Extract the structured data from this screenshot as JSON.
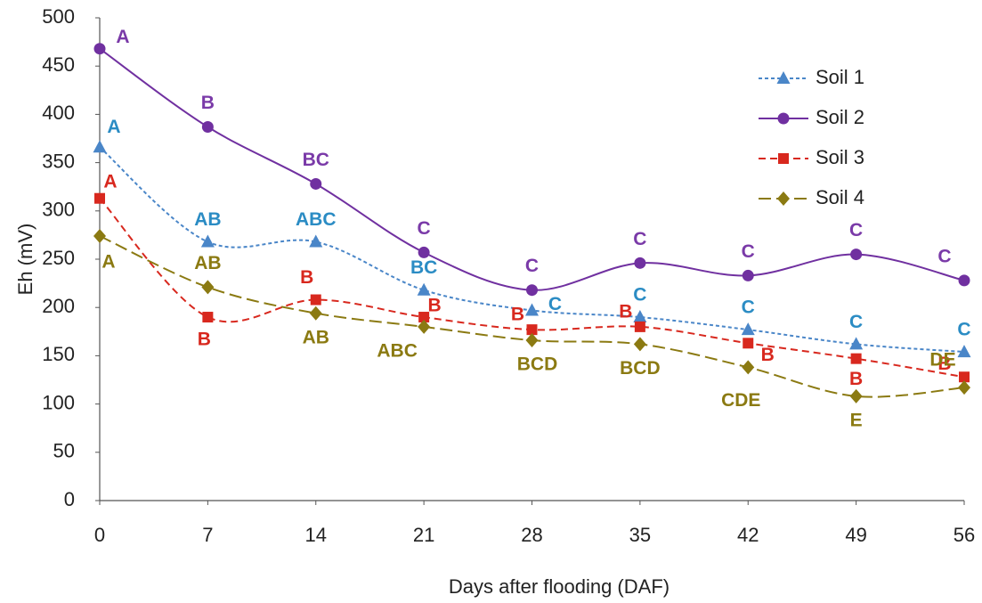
{
  "chart_data": {
    "type": "line",
    "x_label": "Days after flooding (DAF)",
    "y_label": "Eh (mV)",
    "x": [
      0,
      7,
      14,
      21,
      28,
      35,
      42,
      49,
      56
    ],
    "xlim": [
      0,
      56
    ],
    "xticks": [
      0,
      7,
      14,
      21,
      28,
      35,
      42,
      49,
      56
    ],
    "ylim": [
      0,
      500
    ],
    "yticks": [
      0,
      50,
      100,
      150,
      200,
      250,
      300,
      350,
      400,
      450,
      500
    ],
    "grid": false,
    "legend": "upper right",
    "smooth": true,
    "series": [
      {
        "name": "Soil 1",
        "color": "#4a86c8",
        "label_color": "#2b8cc4",
        "marker": "triangle",
        "dash": "4,3",
        "values": [
          366,
          268,
          268,
          218,
          197,
          190,
          177,
          162,
          154
        ],
        "letters": [
          "A",
          "AB",
          "ABC",
          "BC",
          "C",
          "C",
          "C",
          "C",
          "C"
        ]
      },
      {
        "name": "Soil 2",
        "color": "#7030a0",
        "label_color": "#7a3aa8",
        "marker": "circle",
        "dash": "none",
        "values": [
          468,
          387,
          328,
          257,
          218,
          246,
          233,
          255,
          228
        ],
        "letters": [
          "A",
          "B",
          "BC",
          "C",
          "C",
          "C",
          "C",
          "C",
          "C"
        ]
      },
      {
        "name": "Soil 3",
        "color": "#d8281e",
        "label_color": "#d8281e",
        "marker": "square",
        "dash": "8,5",
        "values": [
          313,
          190,
          208,
          190,
          177,
          180,
          163,
          147,
          128
        ],
        "letters": [
          "A",
          "B",
          "B",
          "B",
          "B",
          "B",
          "B",
          "B",
          "B"
        ]
      },
      {
        "name": "Soil 4",
        "color": "#8b7a12",
        "label_color": "#8b7a12",
        "marker": "diamond",
        "dash": "14,6",
        "values": [
          274,
          221,
          194,
          180,
          166,
          162,
          138,
          108,
          117
        ],
        "letters": [
          "A",
          "AB",
          "AB",
          "ABC",
          "BCD",
          "BCD",
          "CDE",
          "E",
          "DE"
        ]
      }
    ]
  }
}
